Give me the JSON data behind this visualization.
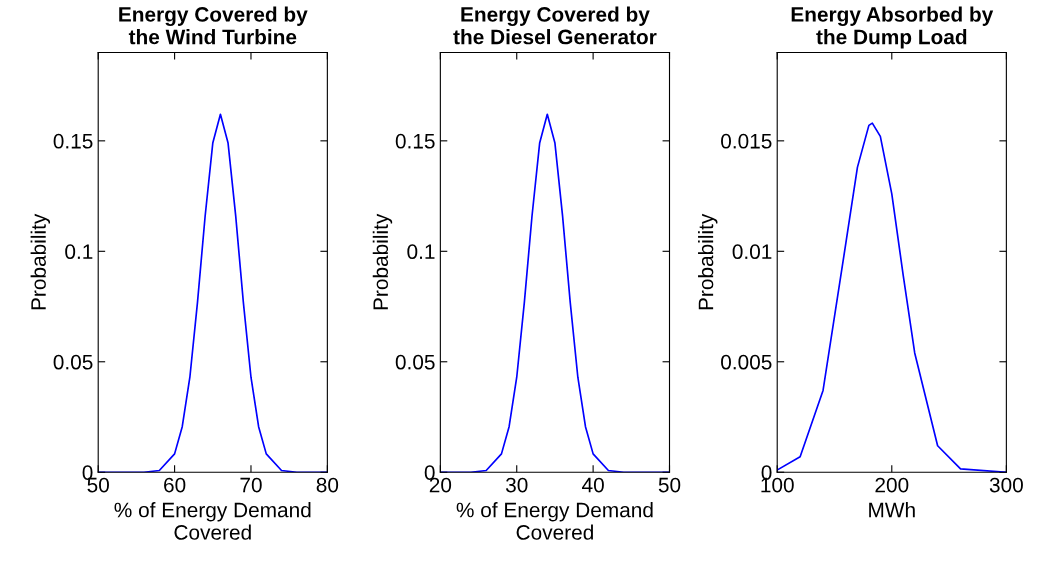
{
  "chart_data": [
    {
      "type": "line",
      "title": "Energy Covered by\nthe Wind Turbine",
      "xlabel": "% of Energy Demand\nCovered",
      "ylabel": "Probability",
      "x": [
        50,
        56,
        58,
        60,
        61,
        62,
        63,
        64,
        65,
        66,
        67,
        68,
        69,
        70,
        71,
        72,
        74,
        76,
        80
      ],
      "series": [
        {
          "color": "#0000ff",
          "values": [
            0,
            0,
            0.0008,
            0.0083,
            0.0206,
            0.043,
            0.077,
            0.116,
            0.149,
            0.162,
            0.149,
            0.116,
            0.077,
            0.043,
            0.0206,
            0.0083,
            0.0008,
            0,
            0
          ]
        }
      ],
      "xlim": [
        50,
        80
      ],
      "xticks": [
        50,
        60,
        70,
        80
      ],
      "ylim": [
        0,
        0.19
      ],
      "yticks": [
        0,
        0.05,
        0.1,
        0.15
      ],
      "grid": false,
      "marker": "none",
      "line_style": "solid"
    },
    {
      "type": "line",
      "title": "Energy Covered by\nthe Diesel Generator",
      "xlabel": "% of Energy Demand\nCovered",
      "ylabel": "Probability",
      "x": [
        20,
        24,
        26,
        28,
        29,
        30,
        31,
        32,
        33,
        34,
        35,
        36,
        37,
        38,
        39,
        40,
        42,
        44,
        50
      ],
      "series": [
        {
          "color": "#0000ff",
          "values": [
            0,
            0,
            0.0008,
            0.0083,
            0.0206,
            0.043,
            0.077,
            0.116,
            0.149,
            0.162,
            0.149,
            0.116,
            0.077,
            0.043,
            0.0206,
            0.0083,
            0.0008,
            0,
            0
          ]
        }
      ],
      "xlim": [
        20,
        50
      ],
      "xticks": [
        20,
        30,
        40,
        50
      ],
      "ylim": [
        0,
        0.19
      ],
      "yticks": [
        0,
        0.05,
        0.1,
        0.15
      ],
      "grid": false,
      "marker": "none",
      "line_style": "solid"
    },
    {
      "type": "line",
      "title": "Energy Absorbed by\nthe Dump Load",
      "xlabel": "MWh",
      "ylabel": "Probability",
      "x": [
        100,
        120,
        140,
        160,
        170,
        180,
        183,
        190,
        200,
        210,
        220,
        240,
        260,
        300
      ],
      "series": [
        {
          "color": "#0000ff",
          "values": [
            0.0001,
            0.0007,
            0.0037,
            0.0104,
            0.0138,
            0.0157,
            0.0158,
            0.0152,
            0.0126,
            0.0089,
            0.0054,
            0.0012,
            0.00015,
            0
          ]
        }
      ],
      "xlim": [
        100,
        300
      ],
      "xticks": [
        100,
        200,
        300
      ],
      "ylim": [
        0,
        0.019
      ],
      "yticks": [
        0,
        0.005,
        0.01,
        0.015
      ],
      "grid": false,
      "marker": "none",
      "line_style": "solid"
    }
  ]
}
